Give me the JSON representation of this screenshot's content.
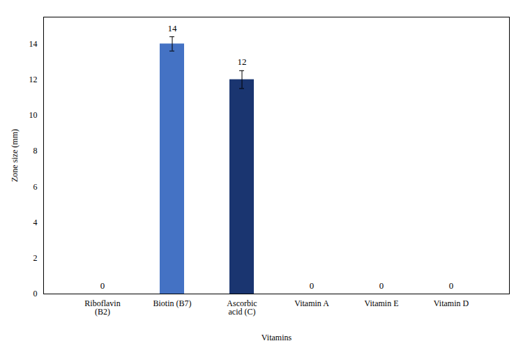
{
  "chart_data": {
    "type": "bar",
    "categories": [
      "Riboflavin\n(B2)",
      "Biotin (B7)",
      "Ascorbic\nacid (C)",
      "Vitamin A",
      "Vitamin E",
      "Vitamin D"
    ],
    "values": [
      0,
      14,
      12,
      0,
      0,
      0
    ],
    "errors": [
      0,
      0.4,
      0.5,
      0,
      0,
      0
    ],
    "colors": [
      "#4472c4",
      "#4472c4",
      "#1a3570",
      "#4472c4",
      "#4472c4",
      "#4472c4"
    ],
    "xlabel": "Vitamins",
    "ylabel": "Zone size (mm)",
    "ylim": [
      0,
      15.5
    ],
    "yticks": [
      0,
      2,
      4,
      6,
      8,
      10,
      12,
      14
    ],
    "data_labels": true,
    "grid": false
  }
}
